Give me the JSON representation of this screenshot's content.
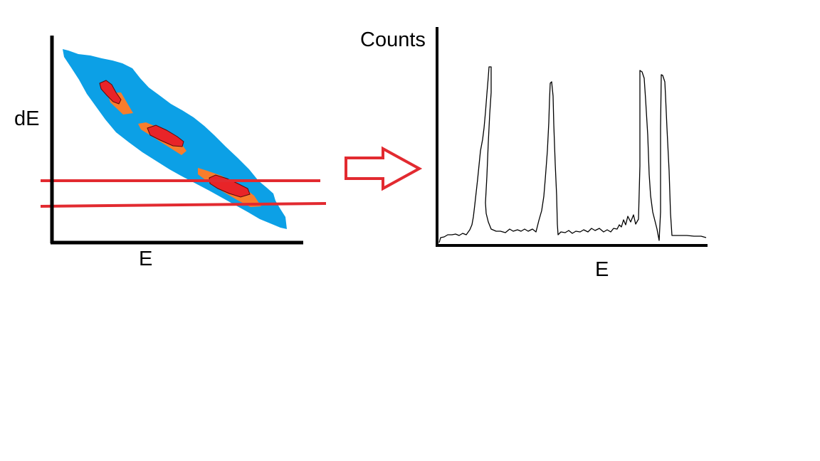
{
  "left_plot": {
    "y_axis_label": "dE",
    "x_axis_label": "E"
  },
  "right_plot": {
    "y_axis_label": "Counts",
    "x_axis_label": "E"
  },
  "colors": {
    "band": "#0ca0e6",
    "halo": "#f87d2c",
    "core": "#e82428",
    "gate_line": "#e22a30",
    "arrow": "#e22a30",
    "axis": "#000000",
    "spectrum": "#000000"
  },
  "icons": {
    "arrow": "right-arrow-icon"
  }
}
